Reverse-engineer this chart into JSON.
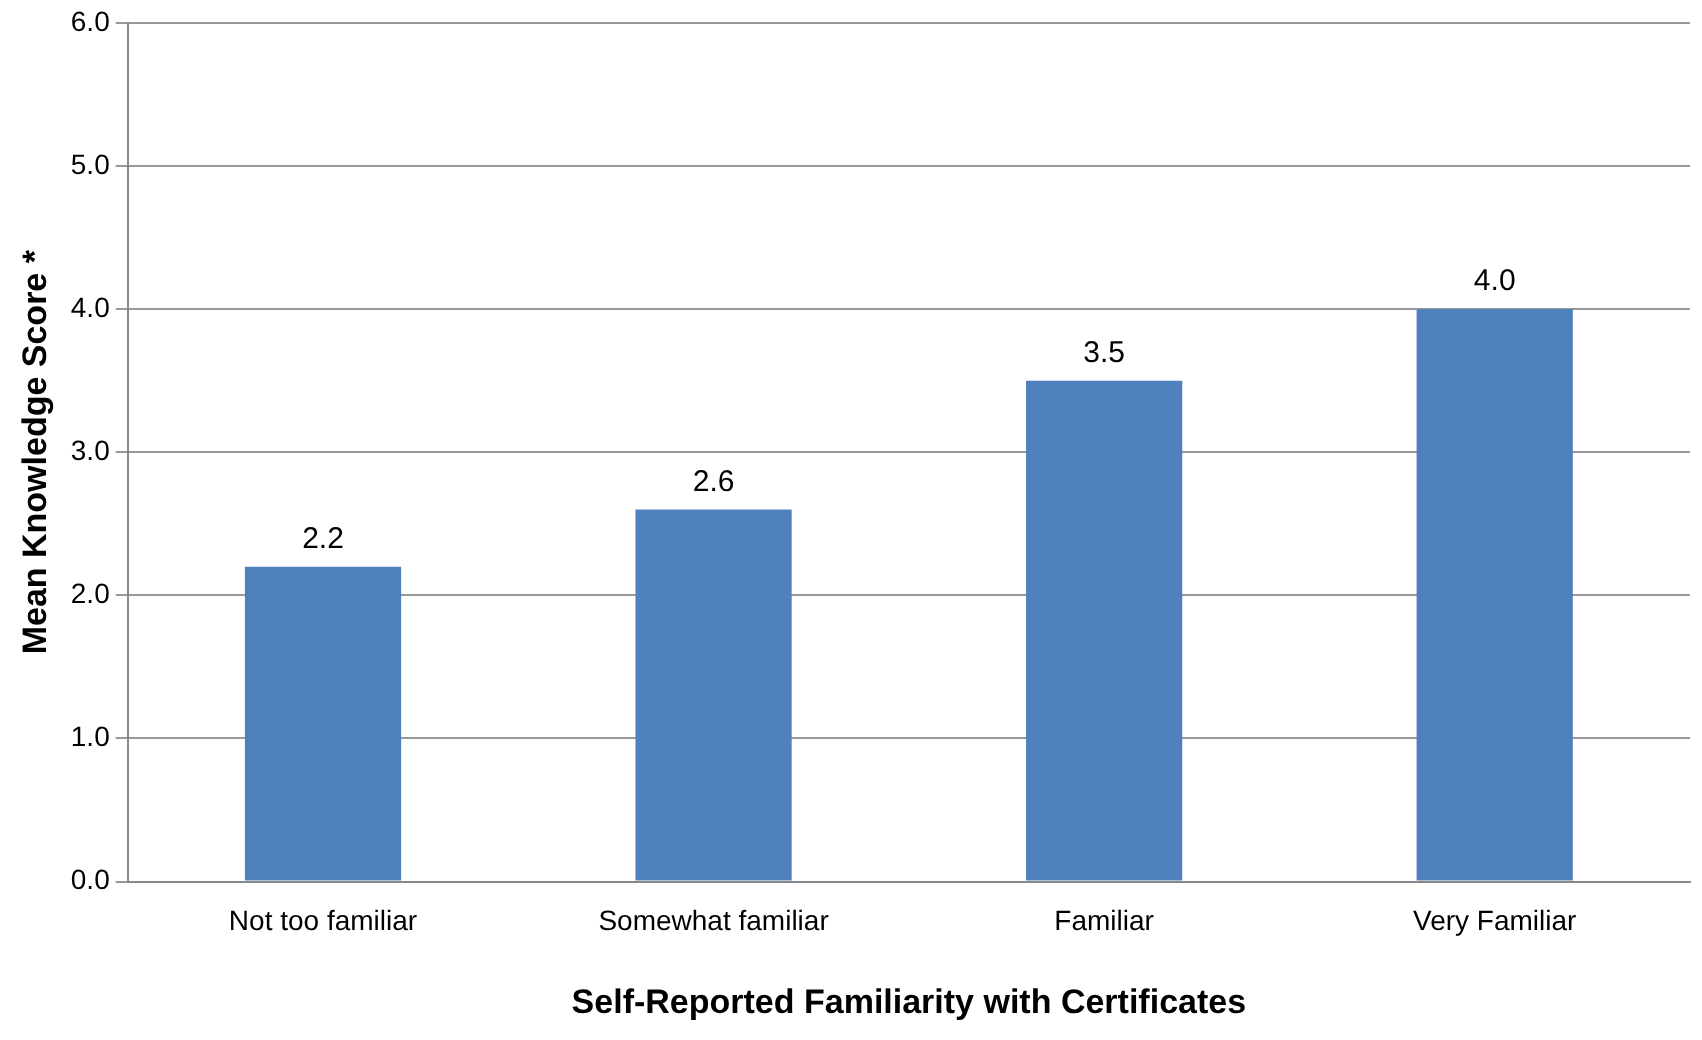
{
  "chart_data": {
    "type": "bar",
    "xlabel": "Self-Reported Familiarity with Certificates",
    "ylabel": "Mean Knowledge Score *",
    "categories": [
      "Not too familiar",
      "Somewhat familiar",
      "Familiar",
      "Very Familiar"
    ],
    "values": [
      2.2,
      2.6,
      3.5,
      4.0
    ],
    "value_labels": [
      "2.2",
      "2.6",
      "3.5",
      "4.0"
    ],
    "color": "#4f81bd",
    "ylim": [
      0,
      6
    ],
    "yticks": [
      {
        "value": 0,
        "label": "0.0"
      },
      {
        "value": 1,
        "label": "1.0"
      },
      {
        "value": 2,
        "label": "2.0"
      },
      {
        "value": 3,
        "label": "3.0"
      },
      {
        "value": 4,
        "label": "4.0"
      },
      {
        "value": 5,
        "label": "5.0"
      },
      {
        "value": 6,
        "label": "6.0"
      }
    ],
    "grid": "y",
    "legend": false
  }
}
